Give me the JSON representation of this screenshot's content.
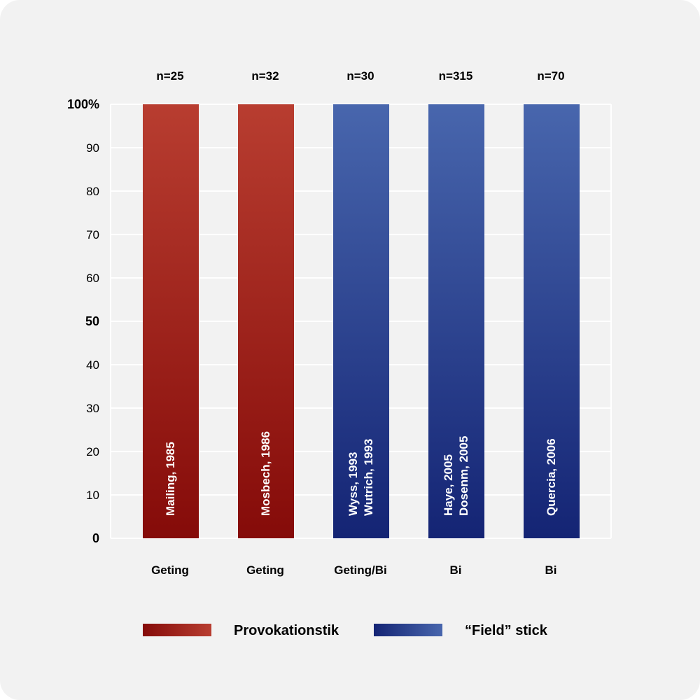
{
  "chart_data": {
    "type": "bar",
    "stacked": false,
    "ylim": [
      0,
      100
    ],
    "yticks": [
      "0",
      "10",
      "20",
      "30",
      "40",
      "50",
      "60",
      "70",
      "80",
      "90",
      "100%"
    ],
    "grid": true,
    "legend_position": "bottom",
    "categories": [
      "Geting",
      "Geting",
      "Geting/Bi",
      "Bi",
      "Bi"
    ],
    "counts": [
      "n=25",
      "n=32",
      "n=30",
      "n=315",
      "n=70"
    ],
    "bar_labels": [
      [
        "Mailing, 1985"
      ],
      [
        "Mosbech, 1986"
      ],
      [
        "Wyss, 1993",
        "Wutrich, 1993"
      ],
      [
        "Haye, 2005",
        "Dosenm, 2005"
      ],
      [
        "Quercia, 2006"
      ]
    ],
    "bar_series": [
      "Provokationstik",
      "Provokationstik",
      "“Field” stick",
      "“Field” stick",
      "“Field” stick"
    ],
    "values": [
      100,
      100,
      100,
      100,
      100
    ],
    "series": [
      {
        "name": "Provokationstik",
        "color_dark": "#850b09",
        "color_light": "#b83d30"
      },
      {
        "name": "“Field” stick",
        "color_dark": "#142474",
        "color_light": "#4866ad"
      }
    ]
  }
}
